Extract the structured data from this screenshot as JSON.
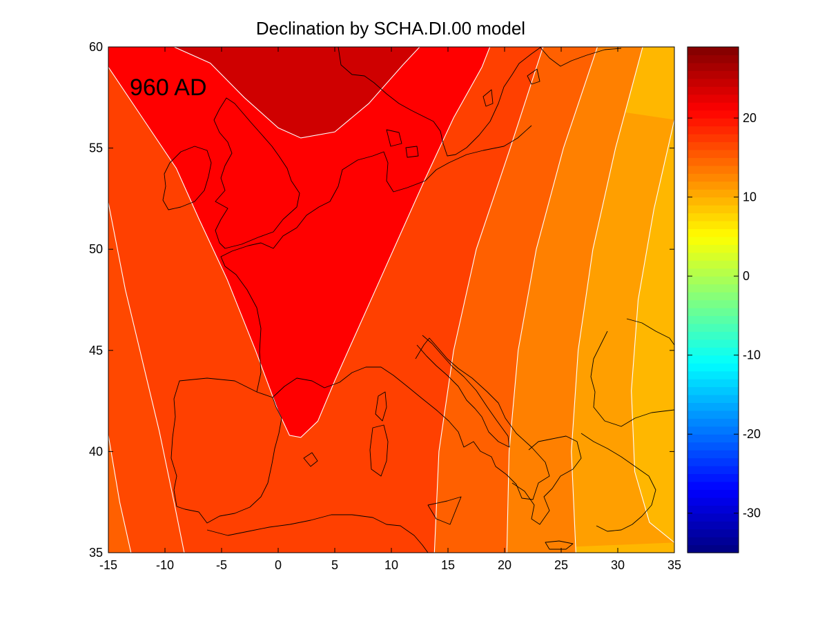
{
  "chart_data": {
    "type": "heatmap",
    "title": "Declination by SCHA.DI.00 model",
    "annotation": "960 AD",
    "xlabel": "",
    "ylabel": "",
    "xlim": [
      -15,
      35
    ],
    "ylim": [
      35,
      60
    ],
    "x_ticks": [
      -15,
      -10,
      -5,
      0,
      5,
      10,
      15,
      20,
      25,
      30,
      35
    ],
    "y_ticks": [
      35,
      40,
      45,
      50,
      55,
      60
    ],
    "colorbar": {
      "range": [
        -35,
        29
      ],
      "ticks": [
        -30,
        -20,
        -10,
        0,
        10,
        20
      ],
      "colormap": "jet"
    },
    "contour_levels": [
      12,
      14,
      16,
      18,
      20,
      22
    ],
    "contours": [
      {
        "level": 22,
        "points": [
          [
            -9.2,
            60
          ],
          [
            -6,
            59.2
          ],
          [
            -3,
            57.5
          ],
          [
            0,
            56
          ],
          [
            2,
            55.5
          ],
          [
            5,
            55.8
          ],
          [
            8,
            57.2
          ],
          [
            11,
            59.1
          ],
          [
            12.5,
            60
          ]
        ]
      },
      {
        "level": 20,
        "points": [
          [
            -15,
            59
          ],
          [
            -12,
            56.5
          ],
          [
            -9,
            54
          ],
          [
            -7,
            51.5
          ],
          [
            -4.5,
            48.5
          ],
          [
            -2,
            45
          ],
          [
            0,
            42
          ],
          [
            1,
            40.8
          ],
          [
            2,
            40.7
          ],
          [
            3.5,
            41.5
          ],
          [
            5,
            43.5
          ],
          [
            7,
            46
          ],
          [
            9,
            48.5
          ],
          [
            11,
            51
          ],
          [
            13,
            53.5
          ],
          [
            15.5,
            56.5
          ],
          [
            18,
            59
          ],
          [
            18.7,
            60
          ]
        ]
      },
      {
        "level": 18,
        "points": [
          [
            -15,
            52.3
          ],
          [
            -13.5,
            48
          ],
          [
            -12,
            44.5
          ],
          [
            -10.5,
            41
          ],
          [
            -9.2,
            37.5
          ],
          [
            -8.3,
            35
          ]
        ]
      },
      {
        "level": 18,
        "points": [
          [
            23.4,
            60
          ],
          [
            20.5,
            55
          ],
          [
            17.5,
            50
          ],
          [
            15.5,
            45
          ],
          [
            14.2,
            40
          ],
          [
            13.8,
            35
          ]
        ]
      },
      {
        "level": 16,
        "points": [
          [
            -15,
            40.8
          ],
          [
            -14,
            37.5
          ],
          [
            -13,
            35
          ]
        ]
      },
      {
        "level": 16,
        "points": [
          [
            28.2,
            60
          ],
          [
            25.2,
            55
          ],
          [
            22.8,
            50
          ],
          [
            21.2,
            45
          ],
          [
            20.4,
            40
          ],
          [
            20.2,
            35
          ]
        ]
      },
      {
        "level": 14,
        "points": [
          [
            32.2,
            60
          ],
          [
            29.8,
            55
          ],
          [
            27.8,
            50
          ],
          [
            26.5,
            45
          ],
          [
            25.9,
            40
          ],
          [
            26.3,
            35
          ]
        ]
      },
      {
        "level": 12,
        "points": [
          [
            35,
            56.4
          ],
          [
            33.2,
            52
          ],
          [
            31.8,
            47.5
          ],
          [
            31.2,
            43
          ],
          [
            31.5,
            39
          ],
          [
            32.8,
            36.5
          ],
          [
            35,
            35.5
          ]
        ]
      }
    ],
    "band_values": [
      24,
      21,
      19,
      17,
      15,
      13,
      11,
      9.5
    ]
  }
}
